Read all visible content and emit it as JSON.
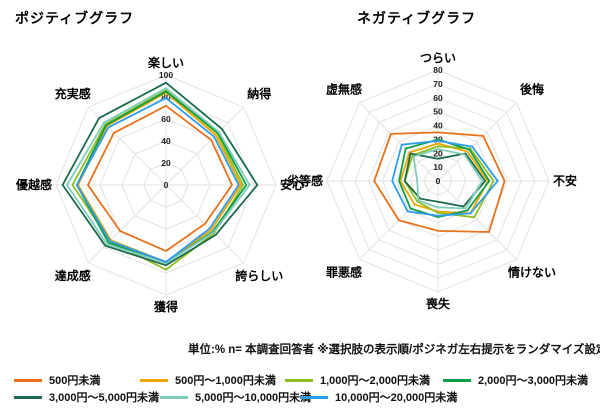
{
  "chart_data": [
    {
      "type": "radar",
      "title": "ポジティブグラフ",
      "axes": [
        "楽しい",
        "納得",
        "安心",
        "誇らしい",
        "獲得",
        "達成感",
        "優越感",
        "充実感"
      ],
      "max": 100,
      "ring_step": 20,
      "ticks": [
        100,
        80,
        60,
        40,
        20,
        0
      ],
      "grid_color": "#e2e2e2",
      "series": [
        {
          "name": "500円未満",
          "color": "#e8711a",
          "values": [
            72,
            58,
            60,
            50,
            60,
            59,
            71,
            67
          ]
        },
        {
          "name": "500円〜1,000円未満",
          "color": "#f0a500",
          "values": [
            84,
            64,
            68,
            58,
            70,
            71,
            80,
            76
          ]
        },
        {
          "name": "1,000円〜2,000円未満",
          "color": "#8fbe21",
          "values": [
            86,
            66,
            70,
            62,
            77,
            72,
            85,
            78
          ]
        },
        {
          "name": "2,000円〜3,000円未満",
          "color": "#0f9e45",
          "values": [
            85,
            67,
            73,
            60,
            71,
            74,
            81,
            77
          ]
        },
        {
          "name": "3,000円〜5,000円未満",
          "color": "#1b6b4a",
          "values": [
            93,
            72,
            83,
            64,
            73,
            78,
            94,
            86
          ]
        },
        {
          "name": "5,000円〜10,000円未満",
          "color": "#7fccbd",
          "values": [
            88,
            68,
            76,
            61,
            71,
            76,
            90,
            80
          ]
        },
        {
          "name": "10,000円〜20,000円未満",
          "color": "#2f9ced",
          "values": [
            79,
            62,
            66,
            56,
            70,
            72,
            81,
            74
          ]
        }
      ]
    },
    {
      "type": "radar",
      "title": "ネガティブグラフ",
      "axes": [
        "つらい",
        "後悔",
        "不安",
        "情けない",
        "喪失",
        "罪悪感",
        "劣等感",
        "虚無感"
      ],
      "max": 80,
      "ring_step": 10,
      "ticks": [
        80,
        70,
        60,
        50,
        40,
        30,
        20,
        10,
        0
      ],
      "grid_color": "#e2e2e2",
      "series": [
        {
          "name": "500円未満",
          "color": "#e8711a",
          "values": [
            35,
            46,
            48,
            52,
            36,
            40,
            46,
            48
          ]
        },
        {
          "name": "500円〜1,000円未満",
          "color": "#f0a500",
          "values": [
            27,
            30,
            36,
            33,
            22,
            24,
            27,
            29
          ]
        },
        {
          "name": "1,000円〜2,000円未満",
          "color": "#8fbe21",
          "values": [
            25,
            33,
            40,
            37,
            23,
            21,
            24,
            26
          ]
        },
        {
          "name": "2,000円〜3,000円未満",
          "color": "#0f9e45",
          "values": [
            30,
            32,
            37,
            30,
            26,
            28,
            28,
            33
          ]
        },
        {
          "name": "3,000円〜5,000円未満",
          "color": "#1b6b4a",
          "values": [
            16,
            28,
            34,
            26,
            15,
            18,
            24,
            28
          ]
        },
        {
          "name": "5,000円〜10,000円未満",
          "color": "#7fccbd",
          "values": [
            23,
            27,
            32,
            28,
            19,
            20,
            15,
            25
          ]
        },
        {
          "name": "10,000円〜20,000円未満",
          "color": "#2f9ced",
          "values": [
            29,
            35,
            43,
            33,
            25,
            31,
            33,
            37
          ]
        }
      ]
    }
  ],
  "notes": {
    "footnote": "単位:%  n= 本調査回答者  ※選択肢の表示順/ポジネガ左右提示をランダマイズ設定"
  },
  "legend": {
    "items": [
      {
        "label": "500円未満",
        "color": "#e8711a"
      },
      {
        "label": "500円〜1,000円未満",
        "color": "#f0a500"
      },
      {
        "label": "1,000円〜2,000円未満",
        "color": "#8fbe21"
      },
      {
        "label": "2,000円〜3,000円未満",
        "color": "#0f9e45"
      },
      {
        "label": "3,000円〜5,000円未満",
        "color": "#1b6b4a"
      },
      {
        "label": "5,000円〜10,000円未満",
        "color": "#7fccbd"
      },
      {
        "label": "10,000円〜20,000円未満",
        "color": "#2f9ced"
      }
    ]
  }
}
